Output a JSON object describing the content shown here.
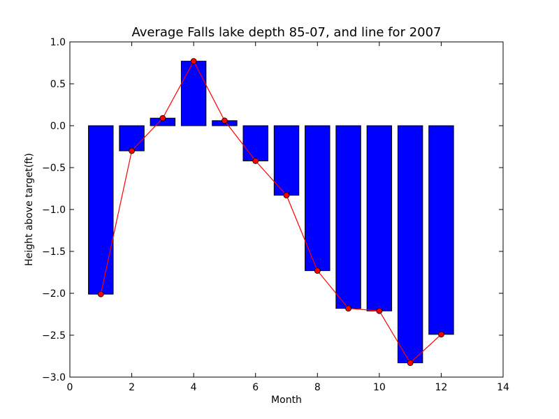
{
  "chart_data": {
    "type": "bar",
    "title": "Average Falls lake depth 85-07, and line for 2007",
    "xlabel": "Month",
    "ylabel": "Height above target(ft)",
    "xlim": [
      0,
      14
    ],
    "ylim": [
      -3.0,
      1.0
    ],
    "xticks": [
      "0",
      "2",
      "4",
      "6",
      "8",
      "10",
      "12",
      "14"
    ],
    "xtick_values": [
      0,
      2,
      4,
      6,
      8,
      10,
      12,
      14
    ],
    "yticks": [
      "−3.0",
      "−2.5",
      "−2.0",
      "−1.5",
      "−1.0",
      "−0.5",
      "0.0",
      "0.5",
      "1.0"
    ],
    "ytick_values": [
      -3.0,
      -2.5,
      -2.0,
      -1.5,
      -1.0,
      -0.5,
      0.0,
      0.5,
      1.0
    ],
    "grid": false,
    "x": [
      1,
      2,
      3,
      4,
      5,
      6,
      7,
      8,
      9,
      10,
      11,
      12
    ],
    "series": [
      {
        "kind": "bar",
        "color": "#0000ff",
        "bar_width": 0.8,
        "values": [
          -2.01,
          -0.3,
          0.09,
          0.77,
          0.06,
          -0.42,
          -0.83,
          -1.73,
          -2.18,
          -2.21,
          -2.83,
          -2.49
        ]
      },
      {
        "kind": "line",
        "color": "#ff0000",
        "marker": "circle",
        "values": [
          -2.01,
          -0.3,
          0.09,
          0.77,
          0.06,
          -0.42,
          -0.83,
          -1.73,
          -2.18,
          -2.21,
          -2.83,
          -2.49
        ]
      }
    ]
  }
}
